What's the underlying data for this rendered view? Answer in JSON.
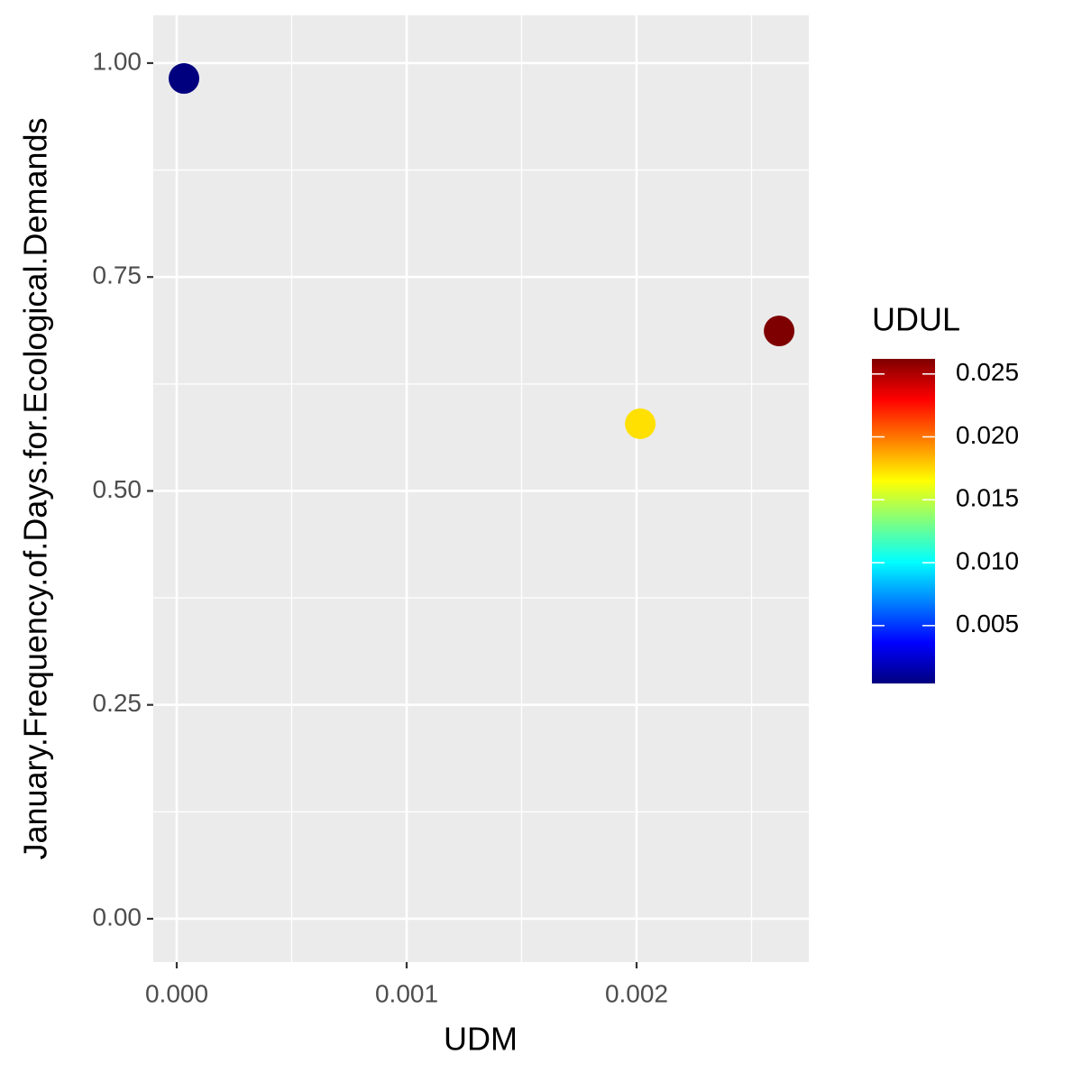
{
  "chart_data": {
    "type": "scatter",
    "x_label": "UDM",
    "y_label": "January.Frequency.of.Days.for.Ecological.Demands",
    "x": [
      3.14e-05,
      0.002016,
      0.00262
    ],
    "values": [
      0.982,
      0.5785,
      0.687
    ],
    "color_values": [
      0.0004,
      0.0168,
      0.0262
    ],
    "point_colors": [
      "#00007F",
      "#FFE000",
      "#7F0000"
    ],
    "xlim": [
      -0.000102,
      0.002749
    ],
    "ylim": [
      -0.0506,
      1.0558
    ],
    "xticks": [
      {
        "value": 0,
        "label": "0.000"
      },
      0.001,
      0.002
    ],
    "yticks": [
      {
        "value": 0,
        "label": "0.00"
      },
      0.25,
      {
        "value": 0.5,
        "label": "0.50"
      },
      0.75,
      {
        "value": 1,
        "label": "1.00"
      }
    ],
    "xminor": [
      0.0005,
      0.0015,
      0.0025
    ],
    "yminor": [
      0.125,
      0.375,
      0.625,
      0.875
    ],
    "grid": true,
    "colorbar": {
      "title": "UDUL",
      "lim": [
        0.0004,
        0.0262
      ],
      "ticks": [
        0.005,
        {
          "value": 0.01,
          "label": "0.010"
        },
        0.015,
        {
          "value": 0.02,
          "label": "0.020"
        },
        0.025
      ],
      "colormap": [
        "#00007F",
        "#0000FF",
        "#007FFF",
        "#00FFFF",
        "#7FFF7F",
        "#FFFF00",
        "#FF7F00",
        "#FF0000",
        "#7F0000"
      ]
    }
  }
}
